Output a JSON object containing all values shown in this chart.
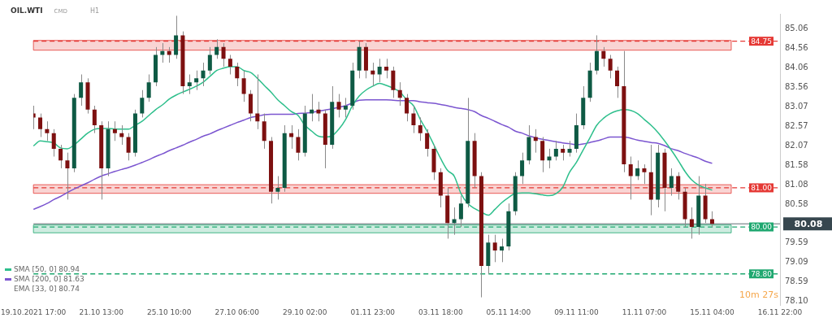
{
  "chart_data": {
    "type": "candlestick",
    "title": "OIL.WTI",
    "subtitle": "CMD",
    "annotations": [
      "H1",
      "EMA [33, 0] 80.74",
      "10m 27s"
    ],
    "categories": [
      "19.10.2021 17:00",
      null,
      null,
      null,
      null,
      null,
      null,
      null,
      null,
      null,
      "21.10 13:00",
      null,
      null,
      null,
      null,
      null,
      null,
      null,
      null,
      null,
      "25.10 10:00",
      null,
      null,
      null,
      null,
      null,
      null,
      null,
      null,
      null,
      "27.10 06:00",
      null,
      null,
      null,
      null,
      null,
      null,
      null,
      null,
      null,
      "29.10 02:00",
      null,
      null,
      null,
      null,
      null,
      null,
      null,
      null,
      null,
      "01.11 23:00",
      null,
      null,
      null,
      null,
      null,
      null,
      null,
      null,
      null,
      "03.11 18:00",
      null,
      null,
      null,
      null,
      null,
      null,
      null,
      null,
      null,
      "05.11 14:00",
      null,
      null,
      null,
      null,
      null,
      null,
      null,
      null,
      null,
      "09.11 11:00",
      null,
      null,
      null,
      null,
      null,
      null,
      null,
      null,
      null,
      "11.11 07:00",
      null,
      null,
      null,
      null,
      null,
      null,
      null,
      null,
      null,
      "15.11 04:00",
      null,
      null,
      null,
      null,
      null,
      null,
      null,
      null,
      null,
      "16.11 22:00"
    ],
    "ohlc": [
      [
        82.9,
        83.1,
        82.5,
        82.8
      ],
      [
        82.8,
        82.9,
        82.3,
        82.5
      ],
      [
        82.5,
        82.7,
        82.2,
        82.4
      ],
      [
        82.4,
        82.5,
        81.8,
        82.0
      ],
      [
        82.0,
        82.1,
        81.5,
        81.7
      ],
      [
        81.7,
        81.9,
        80.7,
        81.5
      ],
      [
        81.5,
        83.4,
        81.4,
        83.3
      ],
      [
        83.3,
        83.9,
        83.1,
        83.7
      ],
      [
        83.7,
        83.8,
        82.9,
        83.0
      ],
      [
        83.0,
        83.1,
        82.4,
        82.6
      ],
      [
        82.6,
        82.7,
        80.7,
        81.5
      ],
      [
        81.5,
        82.7,
        81.3,
        82.5
      ],
      [
        82.5,
        82.7,
        82.2,
        82.4
      ],
      [
        82.4,
        82.6,
        82.1,
        82.3
      ],
      [
        82.3,
        82.4,
        81.7,
        81.9
      ],
      [
        81.9,
        83.0,
        81.8,
        82.9
      ],
      [
        82.9,
        83.5,
        82.8,
        83.3
      ],
      [
        83.3,
        83.9,
        83.2,
        83.7
      ],
      [
        83.7,
        84.6,
        83.6,
        84.4
      ],
      [
        84.4,
        84.7,
        84.2,
        84.5
      ],
      [
        84.5,
        84.6,
        84.2,
        84.4
      ],
      [
        84.4,
        85.4,
        84.3,
        84.9
      ],
      [
        84.9,
        85.0,
        83.4,
        83.6
      ],
      [
        83.6,
        83.9,
        83.4,
        83.7
      ],
      [
        83.7,
        84.0,
        83.5,
        83.8
      ],
      [
        83.8,
        84.2,
        83.6,
        84.0
      ],
      [
        84.0,
        84.6,
        83.9,
        84.4
      ],
      [
        84.4,
        84.8,
        84.3,
        84.6
      ],
      [
        84.6,
        84.7,
        84.1,
        84.3
      ],
      [
        84.3,
        84.4,
        83.9,
        84.1
      ],
      [
        84.1,
        84.2,
        83.6,
        83.8
      ],
      [
        83.8,
        84.0,
        83.2,
        83.4
      ],
      [
        83.4,
        83.5,
        82.7,
        82.9
      ],
      [
        82.9,
        83.9,
        82.5,
        82.7
      ],
      [
        82.7,
        82.9,
        82.0,
        82.2
      ],
      [
        82.2,
        82.3,
        80.6,
        80.9
      ],
      [
        80.9,
        81.3,
        80.7,
        81.0
      ],
      [
        81.0,
        82.6,
        80.9,
        82.4
      ],
      [
        82.4,
        82.6,
        82.0,
        82.3
      ],
      [
        82.3,
        82.5,
        81.7,
        81.9
      ],
      [
        81.9,
        83.1,
        81.8,
        82.9
      ],
      [
        82.9,
        83.4,
        82.7,
        83.0
      ],
      [
        83.0,
        83.2,
        82.7,
        82.9
      ],
      [
        82.9,
        83.0,
        81.5,
        82.1
      ],
      [
        82.1,
        83.6,
        82.0,
        83.2
      ],
      [
        83.2,
        83.4,
        82.8,
        83.0
      ],
      [
        83.0,
        83.3,
        82.8,
        83.1
      ],
      [
        83.1,
        84.2,
        83.0,
        84.0
      ],
      [
        84.0,
        84.75,
        83.8,
        84.6
      ],
      [
        84.6,
        84.7,
        83.8,
        84.0
      ],
      [
        84.0,
        84.2,
        83.6,
        83.9
      ],
      [
        83.9,
        84.3,
        83.7,
        84.1
      ],
      [
        84.1,
        84.3,
        83.8,
        84.0
      ],
      [
        84.0,
        84.1,
        83.3,
        83.5
      ],
      [
        83.5,
        83.7,
        83.1,
        83.3
      ],
      [
        83.3,
        83.4,
        82.7,
        82.9
      ],
      [
        82.9,
        83.1,
        82.4,
        82.6
      ],
      [
        82.6,
        82.8,
        82.2,
        82.4
      ],
      [
        82.4,
        82.5,
        81.8,
        82.0
      ],
      [
        82.0,
        82.1,
        81.2,
        81.4
      ],
      [
        81.4,
        81.5,
        80.5,
        80.8
      ],
      [
        80.8,
        81.0,
        79.7,
        80.1
      ],
      [
        80.1,
        80.5,
        79.8,
        80.2
      ],
      [
        80.2,
        80.8,
        80.0,
        80.6
      ],
      [
        80.6,
        83.3,
        80.5,
        82.2
      ],
      [
        82.2,
        82.4,
        81.0,
        81.3
      ],
      [
        81.3,
        81.4,
        78.2,
        79.0
      ],
      [
        79.0,
        79.8,
        78.8,
        79.6
      ],
      [
        79.6,
        79.8,
        79.1,
        79.4
      ],
      [
        79.4,
        79.7,
        79.1,
        79.5
      ],
      [
        79.5,
        80.6,
        79.4,
        80.4
      ],
      [
        80.4,
        81.4,
        80.3,
        81.3
      ],
      [
        81.3,
        81.9,
        81.1,
        81.7
      ],
      [
        81.7,
        82.6,
        81.6,
        82.3
      ],
      [
        82.3,
        82.5,
        81.9,
        82.2
      ],
      [
        82.2,
        82.3,
        81.4,
        81.7
      ],
      [
        81.7,
        82.0,
        81.5,
        81.8
      ],
      [
        81.8,
        82.2,
        81.7,
        82.0
      ],
      [
        82.0,
        82.1,
        81.7,
        81.9
      ],
      [
        81.9,
        82.2,
        81.8,
        82.0
      ],
      [
        82.0,
        82.9,
        81.9,
        82.6
      ],
      [
        82.6,
        83.6,
        82.5,
        83.3
      ],
      [
        83.3,
        84.2,
        83.2,
        84.0
      ],
      [
        84.0,
        84.9,
        83.9,
        84.5
      ],
      [
        84.5,
        84.6,
        84.1,
        84.3
      ],
      [
        84.3,
        84.4,
        83.8,
        84.0
      ],
      [
        84.0,
        84.1,
        83.3,
        83.6
      ],
      [
        83.6,
        84.5,
        81.4,
        81.6
      ],
      [
        81.6,
        81.8,
        80.7,
        81.3
      ],
      [
        81.3,
        81.7,
        81.2,
        81.5
      ],
      [
        81.5,
        81.6,
        81.1,
        81.4
      ],
      [
        81.4,
        82.1,
        80.3,
        80.7
      ],
      [
        80.7,
        82.1,
        80.5,
        81.9
      ],
      [
        81.9,
        82.0,
        80.4,
        81.0
      ],
      [
        81.0,
        81.5,
        80.8,
        81.3
      ],
      [
        81.3,
        81.4,
        80.7,
        80.9
      ],
      [
        80.9,
        81.0,
        80.0,
        80.2
      ],
      [
        80.2,
        80.5,
        79.7,
        80.0
      ],
      [
        80.0,
        81.3,
        79.8,
        80.8
      ],
      [
        80.8,
        81.1,
        80.1,
        80.2
      ],
      [
        80.2,
        80.4,
        80.0,
        80.08
      ],
      null,
      null,
      null,
      null,
      null,
      null,
      null,
      null,
      null,
      null
    ],
    "series": [
      {
        "name": "SMA [50, 0] 80.94",
        "type": "line",
        "color": "#2ebf8c",
        "values": [
          82.07,
          82.2,
          82.18,
          82.15,
          82.02,
          82.0,
          82.1,
          82.25,
          82.4,
          82.5,
          82.52,
          82.52,
          82.5,
          82.5,
          82.5,
          82.6,
          82.7,
          82.85,
          83.0,
          83.12,
          83.27,
          83.37,
          83.45,
          83.52,
          83.6,
          83.7,
          83.85,
          84.0,
          84.06,
          84.1,
          84.1,
          84.0,
          83.95,
          83.8,
          83.62,
          83.45,
          83.25,
          83.1,
          82.95,
          82.85,
          82.6,
          82.45,
          82.32,
          82.3,
          82.33,
          82.5,
          82.75,
          83.1,
          83.35,
          83.5,
          83.6,
          83.67,
          83.62,
          83.55,
          83.45,
          83.25,
          83.1,
          82.75,
          82.45,
          82.1,
          81.75,
          81.45,
          81.3,
          80.85,
          80.6,
          80.47,
          80.38,
          80.3,
          80.45,
          80.62,
          80.75,
          80.86,
          80.87,
          80.87,
          80.85,
          80.82,
          80.8,
          80.85,
          81.02,
          81.4,
          81.65,
          81.97,
          82.28,
          82.6,
          82.78,
          82.9,
          82.97,
          83.0,
          82.98,
          82.9,
          82.75,
          82.6,
          82.42,
          82.2,
          81.96,
          81.7,
          81.42,
          81.2,
          81.07,
          81.0,
          80.94,
          null,
          null,
          null,
          null,
          null,
          null,
          null,
          null,
          null,
          null
        ]
      },
      {
        "name": "SMA [200, 0] 81.63",
        "type": "line",
        "color": "#7b55d0",
        "values": [
          80.45,
          80.52,
          80.6,
          80.7,
          80.78,
          80.88,
          80.97,
          81.05,
          81.13,
          81.22,
          81.3,
          81.36,
          81.42,
          81.47,
          81.52,
          81.58,
          81.65,
          81.72,
          81.8,
          81.87,
          81.95,
          82.02,
          82.09,
          82.17,
          82.24,
          82.32,
          82.38,
          82.46,
          82.53,
          82.6,
          82.67,
          82.73,
          82.8,
          82.83,
          82.87,
          82.88,
          82.88,
          82.88,
          82.88,
          82.9,
          82.91,
          82.93,
          82.96,
          82.99,
          83.02,
          83.06,
          83.1,
          83.17,
          83.24,
          83.25,
          83.25,
          83.25,
          83.25,
          83.24,
          83.23,
          83.23,
          83.23,
          83.2,
          83.18,
          83.16,
          83.13,
          83.1,
          83.06,
          83.03,
          83.0,
          82.95,
          82.85,
          82.78,
          82.7,
          82.62,
          82.55,
          82.45,
          82.4,
          82.33,
          82.28,
          82.24,
          82.21,
          82.18,
          82.15,
          82.13,
          82.1,
          82.12,
          82.16,
          82.2,
          82.25,
          82.3,
          82.3,
          82.3,
          82.27,
          82.22,
          82.19,
          82.16,
          82.14,
          82.08,
          82.0,
          81.95,
          81.88,
          81.82,
          81.76,
          81.68,
          81.63,
          null,
          null,
          null,
          null,
          null,
          null,
          null,
          null,
          null,
          null
        ]
      }
    ],
    "ylim": [
      78.0,
      85.45
    ],
    "yticks": [
      85.06,
      84.56,
      84.06,
      83.56,
      83.07,
      82.57,
      82.07,
      81.58,
      81.08,
      80.58,
      79.59,
      79.09,
      78.59,
      {
        "value": 78.1,
        "label": "78.10"
      }
    ],
    "ref_lines": [
      {
        "axis": "y",
        "value": 84.75,
        "label": "84.75",
        "color": "#e53935",
        "line_style": "dashed"
      },
      {
        "axis": "y",
        "value": 81.0,
        "label": "81.00",
        "color": "#e53935",
        "line_style": "dashed"
      },
      {
        "axis": "y",
        "value": 80.0,
        "label": "80.00",
        "color": "#1fa870",
        "line_style": "dashed"
      },
      {
        "axis": "y",
        "value": 78.8,
        "label": "78.80",
        "color": "#1fa870",
        "line_style": "dashed"
      },
      {
        "axis": "y",
        "value": 80.08,
        "label": "80.08",
        "color": "#37474f",
        "line_style": "solid"
      }
    ],
    "bands": [
      {
        "axis": "y",
        "from": 84.52,
        "to": 84.77,
        "color": "#e53935"
      },
      {
        "axis": "y",
        "from": 80.86,
        "to": 81.08,
        "color": "#e53935"
      },
      {
        "axis": "y",
        "from": 79.85,
        "to": 80.05,
        "color": "#1fa870"
      }
    ],
    "legend": "bottom left",
    "grid": false
  }
}
